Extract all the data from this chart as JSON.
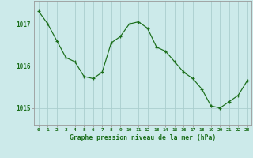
{
  "x": [
    0,
    1,
    2,
    3,
    4,
    5,
    6,
    7,
    8,
    9,
    10,
    11,
    12,
    13,
    14,
    15,
    16,
    17,
    18,
    19,
    20,
    21,
    22,
    23
  ],
  "y": [
    1017.3,
    1017.0,
    1016.6,
    1016.2,
    1016.1,
    1015.75,
    1015.7,
    1015.85,
    1016.55,
    1016.7,
    1017.0,
    1017.05,
    1016.9,
    1016.45,
    1016.35,
    1016.1,
    1015.85,
    1015.7,
    1015.45,
    1015.05,
    1015.0,
    1015.15,
    1015.3,
    1015.65
  ],
  "line_color": "#1a6e1a",
  "marker": "+",
  "background_color": "#cceaea",
  "grid_color": "#aacece",
  "axis_label_color": "#1a6e1a",
  "xlabel": "Graphe pression niveau de la mer (hPa)",
  "yticks": [
    1015,
    1016,
    1017
  ],
  "ylim": [
    1014.6,
    1017.55
  ],
  "xlim": [
    -0.5,
    23.5
  ],
  "xticks": [
    0,
    1,
    2,
    3,
    4,
    5,
    6,
    7,
    8,
    9,
    10,
    11,
    12,
    13,
    14,
    15,
    16,
    17,
    18,
    19,
    20,
    21,
    22,
    23
  ]
}
